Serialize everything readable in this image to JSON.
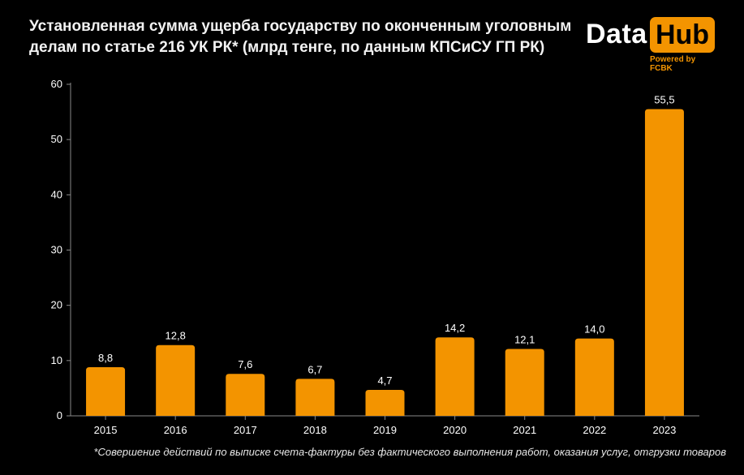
{
  "title": "Установленная сумма ущерба государству по оконченным уголовным делам по статье 216 УК РК* (млрд тенге, по данным КПСиСУ ГП РК)",
  "logo": {
    "word1": "Data",
    "word2": "Hub",
    "powered": "Powered by FCBK"
  },
  "footnote": "*Совершение действий по выписке счета-фактуры без фактического выполнения работ, оказания услуг, отгрузки товаров",
  "colors": {
    "bar": "#f39400",
    "background": "#000000",
    "text": "#ffffff",
    "axis": "#888888"
  },
  "chart_data": {
    "type": "bar",
    "categories": [
      "2015",
      "2016",
      "2017",
      "2018",
      "2019",
      "2020",
      "2021",
      "2022",
      "2023"
    ],
    "values": [
      8.8,
      12.8,
      7.6,
      6.7,
      4.7,
      14.2,
      12.1,
      14.0,
      55.5
    ],
    "value_labels": [
      "8,8",
      "12,8",
      "7,6",
      "6,7",
      "4,7",
      "14,2",
      "12,1",
      "14,0",
      "55,5"
    ],
    "yticks": [
      0,
      10,
      20,
      30,
      40,
      50,
      60
    ],
    "ylim": [
      0,
      60
    ],
    "grid": false,
    "legend": "none"
  }
}
